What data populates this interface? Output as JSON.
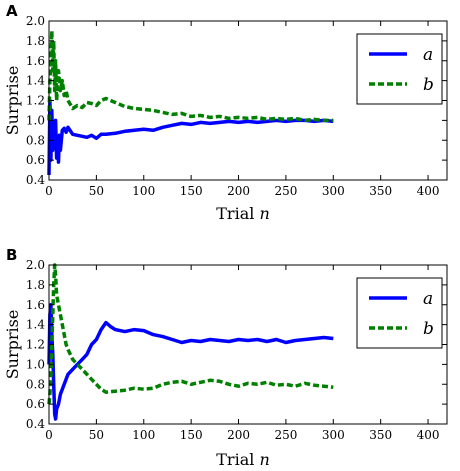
{
  "chart_data": [
    {
      "panel_label": "A",
      "type": "line",
      "xlabel": "Trial n",
      "ylabel": "Surprise",
      "xlim": [
        0,
        420
      ],
      "ylim": [
        0.4,
        2.0
      ],
      "xticks": [
        0,
        50,
        100,
        150,
        200,
        250,
        300,
        350,
        400
      ],
      "yticks": [
        0.4,
        0.6,
        0.8,
        1.0,
        1.2,
        1.4,
        1.6,
        1.8,
        2.0
      ],
      "grid": false,
      "legend_position": "top-right",
      "series": [
        {
          "name": "a",
          "color": "#0000ff",
          "style": "solid",
          "x": [
            0,
            1,
            2,
            3,
            4,
            5,
            6,
            7,
            8,
            9,
            10,
            11,
            12,
            14,
            16,
            18,
            20,
            25,
            30,
            35,
            40,
            45,
            50,
            55,
            60,
            70,
            80,
            90,
            100,
            110,
            120,
            130,
            140,
            150,
            160,
            170,
            180,
            190,
            200,
            210,
            220,
            230,
            240,
            250,
            260,
            270,
            280,
            290,
            300
          ],
          "y": [
            0.45,
            1.2,
            0.6,
            1.1,
            0.7,
            0.95,
            0.75,
            1.0,
            0.62,
            0.78,
            0.58,
            0.85,
            0.7,
            0.9,
            0.92,
            0.88,
            0.93,
            0.86,
            0.85,
            0.84,
            0.83,
            0.85,
            0.82,
            0.86,
            0.86,
            0.87,
            0.89,
            0.9,
            0.91,
            0.9,
            0.93,
            0.95,
            0.97,
            0.96,
            0.98,
            0.97,
            0.98,
            0.99,
            0.98,
            0.99,
            0.98,
            0.99,
            1.0,
            0.99,
            1.0,
            1.0,
            0.99,
            1.0,
            0.99
          ]
        },
        {
          "name": "b",
          "color": "#008000",
          "style": "dashed",
          "x": [
            0,
            1,
            2,
            3,
            4,
            5,
            6,
            7,
            8,
            10,
            12,
            14,
            16,
            18,
            20,
            25,
            30,
            35,
            40,
            45,
            50,
            55,
            60,
            70,
            80,
            90,
            100,
            110,
            120,
            130,
            140,
            150,
            160,
            170,
            180,
            190,
            200,
            210,
            220,
            230,
            240,
            250,
            260,
            270,
            280,
            290,
            300
          ],
          "y": [
            1.0,
            1.4,
            1.6,
            1.9,
            1.5,
            1.8,
            1.3,
            1.6,
            1.2,
            1.5,
            1.3,
            1.4,
            1.25,
            1.3,
            1.2,
            1.12,
            1.15,
            1.13,
            1.18,
            1.17,
            1.15,
            1.2,
            1.22,
            1.18,
            1.14,
            1.12,
            1.11,
            1.1,
            1.08,
            1.06,
            1.07,
            1.04,
            1.05,
            1.03,
            1.04,
            1.02,
            1.03,
            1.02,
            1.03,
            1.01,
            1.02,
            1.01,
            1.02,
            1.0,
            1.01,
            1.0,
            1.0
          ]
        }
      ]
    },
    {
      "panel_label": "B",
      "type": "line",
      "xlabel": "Trial n",
      "ylabel": "Surprise",
      "xlim": [
        0,
        420
      ],
      "ylim": [
        0.4,
        2.0
      ],
      "xticks": [
        0,
        50,
        100,
        150,
        200,
        250,
        300,
        350,
        400
      ],
      "yticks": [
        0.4,
        0.6,
        0.8,
        1.0,
        1.2,
        1.4,
        1.6,
        1.8,
        2.0
      ],
      "grid": false,
      "legend_position": "top-right",
      "series": [
        {
          "name": "a",
          "color": "#0000ff",
          "style": "solid",
          "x": [
            0,
            1,
            2,
            3,
            4,
            5,
            6,
            7,
            8,
            10,
            12,
            14,
            16,
            18,
            20,
            25,
            30,
            35,
            40,
            45,
            50,
            55,
            60,
            65,
            70,
            80,
            90,
            100,
            110,
            120,
            130,
            140,
            150,
            160,
            170,
            180,
            190,
            200,
            210,
            220,
            230,
            240,
            250,
            260,
            270,
            280,
            290,
            300
          ],
          "y": [
            1.0,
            1.5,
            1.6,
            1.3,
            1.1,
            0.8,
            0.5,
            0.45,
            0.55,
            0.6,
            0.7,
            0.75,
            0.8,
            0.85,
            0.9,
            0.95,
            1.0,
            1.05,
            1.1,
            1.2,
            1.25,
            1.35,
            1.42,
            1.38,
            1.35,
            1.33,
            1.35,
            1.34,
            1.3,
            1.28,
            1.25,
            1.22,
            1.24,
            1.23,
            1.25,
            1.24,
            1.23,
            1.25,
            1.24,
            1.25,
            1.23,
            1.25,
            1.22,
            1.24,
            1.25,
            1.26,
            1.27,
            1.26
          ]
        },
        {
          "name": "b",
          "color": "#008000",
          "style": "dashed",
          "x": [
            0,
            1,
            2,
            3,
            4,
            5,
            6,
            7,
            8,
            10,
            12,
            14,
            16,
            18,
            20,
            25,
            30,
            35,
            40,
            45,
            50,
            55,
            60,
            70,
            80,
            90,
            100,
            110,
            120,
            130,
            140,
            150,
            160,
            170,
            180,
            190,
            200,
            210,
            220,
            230,
            240,
            250,
            260,
            270,
            280,
            290,
            300
          ],
          "y": [
            0.6,
            0.7,
            0.9,
            1.2,
            1.5,
            1.8,
            2.0,
            1.9,
            1.7,
            1.6,
            1.5,
            1.4,
            1.3,
            1.2,
            1.15,
            1.05,
            1.0,
            0.95,
            0.9,
            0.85,
            0.8,
            0.75,
            0.72,
            0.73,
            0.74,
            0.76,
            0.75,
            0.76,
            0.8,
            0.82,
            0.83,
            0.8,
            0.82,
            0.84,
            0.83,
            0.8,
            0.78,
            0.81,
            0.8,
            0.82,
            0.79,
            0.8,
            0.78,
            0.81,
            0.79,
            0.78,
            0.77
          ]
        }
      ]
    }
  ]
}
